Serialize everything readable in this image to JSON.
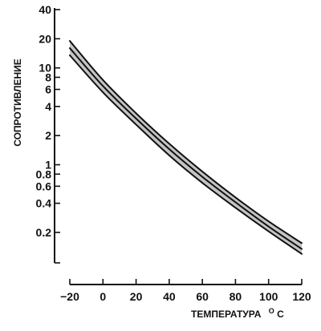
{
  "chart_data": {
    "type": "line",
    "xlabel": "ТЕМПЕРАТУРА",
    "xlabel_unit_sup": "O",
    "xlabel_unit": "C",
    "ylabel": "СОПРОТИВЛЕНИЕ",
    "y_scale": "log",
    "xlim": [
      -20,
      120
    ],
    "ylim": [
      0.1,
      40
    ],
    "x_ticks": [
      -20,
      0,
      20,
      40,
      60,
      80,
      100,
      120
    ],
    "x_tick_labels": [
      "−20",
      "0",
      "20",
      "40",
      "60",
      "80",
      "100",
      "120"
    ],
    "y_ticks": [
      0.2,
      0.4,
      0.6,
      0.8,
      1,
      2,
      4,
      6,
      8,
      10,
      20,
      40
    ],
    "y_tick_labels": [
      "0.2",
      "0.4",
      "0.6",
      "0.8",
      "1",
      "2",
      "4",
      "6",
      "8",
      "10",
      "20",
      "40"
    ],
    "y_extra_ticks": [
      0.1
    ],
    "grid": false,
    "series": [
      {
        "x": [
          -20,
          0,
          20,
          40,
          60,
          80,
          100,
          120
        ],
        "y": [
          19.0,
          7.5,
          3.4,
          1.65,
          0.85,
          0.46,
          0.26,
          0.155
        ]
      },
      {
        "x": [
          -20,
          0,
          20,
          40,
          60,
          80,
          100,
          120
        ],
        "y": [
          16.0,
          6.5,
          3.0,
          1.45,
          0.75,
          0.41,
          0.23,
          0.135
        ]
      },
      {
        "x": [
          -20,
          0,
          20,
          40,
          60,
          80,
          100,
          120
        ],
        "y": [
          13.5,
          5.6,
          2.6,
          1.25,
          0.65,
          0.36,
          0.205,
          0.12
        ]
      }
    ]
  }
}
